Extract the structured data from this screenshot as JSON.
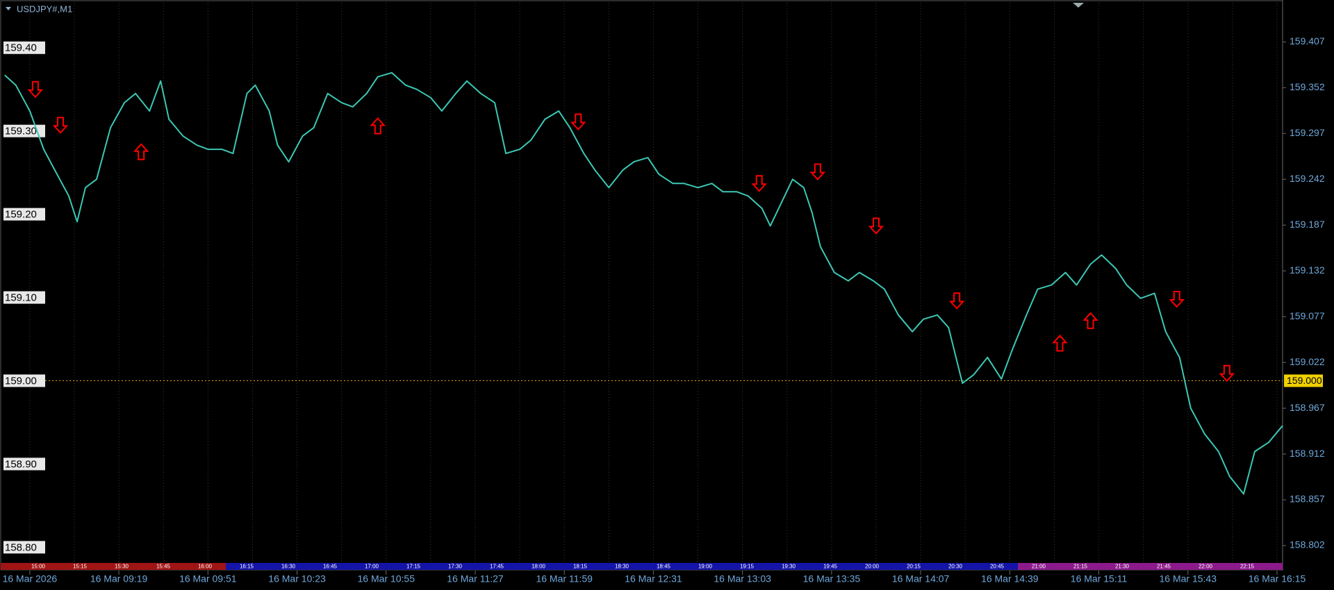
{
  "chart_data": {
    "type": "line",
    "title": "USDJPY#,M1",
    "background": "#000000",
    "grid": true,
    "x": [
      -9,
      -5,
      0,
      5,
      9,
      14,
      17,
      20,
      24,
      29,
      34,
      38,
      43,
      47,
      50,
      55,
      60,
      64,
      69,
      73,
      78,
      81,
      86,
      89,
      93,
      98,
      102,
      107,
      112,
      116,
      121,
      125,
      130,
      135,
      139,
      144,
      148,
      153,
      157,
      162,
      167,
      171,
      176,
      180,
      185,
      190,
      194,
      199,
      203,
      208,
      213,
      217,
      222,
      226,
      231,
      235,
      240,
      245,
      249,
      254,
      258,
      263,
      266,
      269,
      274,
      278,
      281,
      284,
      289,
      294,
      298,
      303,
      307,
      312,
      317,
      321,
      326,
      330,
      335,
      339,
      344,
      349,
      353,
      358,
      362,
      367,
      372,
      376,
      381,
      385,
      390,
      394,
      399,
      404,
      408,
      413,
      417,
      422,
      427,
      431,
      436,
      440,
      445,
      450
    ],
    "series": [
      {
        "color": "#3cc8b4",
        "values": [
          159.367,
          159.355,
          159.324,
          159.278,
          159.253,
          159.222,
          159.191,
          159.232,
          159.242,
          159.304,
          159.334,
          159.345,
          159.324,
          159.36,
          159.314,
          159.294,
          159.283,
          159.278,
          159.278,
          159.273,
          159.345,
          159.355,
          159.324,
          159.283,
          159.263,
          159.294,
          159.304,
          159.345,
          159.334,
          159.329,
          159.345,
          159.365,
          159.37,
          159.355,
          159.35,
          159.34,
          159.324,
          159.345,
          159.36,
          159.345,
          159.334,
          159.273,
          159.278,
          159.289,
          159.314,
          159.324,
          159.304,
          159.273,
          159.253,
          159.232,
          159.253,
          159.263,
          159.268,
          159.248,
          159.237,
          159.237,
          159.232,
          159.237,
          159.227,
          159.227,
          159.222,
          159.207,
          159.186,
          159.207,
          159.242,
          159.232,
          159.202,
          159.161,
          159.13,
          159.12,
          159.13,
          159.12,
          159.11,
          159.079,
          159.059,
          159.074,
          159.079,
          159.064,
          158.997,
          159.007,
          159.028,
          159.002,
          159.038,
          159.079,
          159.11,
          159.115,
          159.13,
          159.115,
          159.14,
          159.151,
          159.135,
          159.115,
          159.099,
          159.105,
          159.059,
          159.028,
          158.967,
          158.936,
          158.915,
          158.885,
          158.864,
          158.915,
          158.926,
          158.946
        ]
      }
    ],
    "arrows_down": {
      "color": "#ff0000",
      "x": [
        2,
        11,
        197,
        262,
        283,
        304,
        333,
        412,
        430
      ],
      "y": [
        159.35,
        159.307,
        159.311,
        159.237,
        159.251,
        159.186,
        159.096,
        159.098,
        159.009
      ]
    },
    "arrows_up": {
      "color": "#ff0000",
      "x": [
        40,
        125,
        370,
        381
      ],
      "y": [
        159.275,
        159.306,
        159.045,
        159.072
      ]
    },
    "xlim": [
      -10.7,
      450
    ],
    "xticks": [
      {
        "value": 0,
        "label": "16 Mar 2026"
      },
      {
        "value": 32,
        "label": "16 Mar 09:19"
      },
      {
        "value": 64,
        "label": "16 Mar 09:51"
      },
      {
        "value": 96,
        "label": "16 Mar 10:23"
      },
      {
        "value": 128,
        "label": "16 Mar 10:55"
      },
      {
        "value": 160,
        "label": "16 Mar 11:27"
      },
      {
        "value": 192,
        "label": "16 Mar 11:59"
      },
      {
        "value": 224,
        "label": "16 Mar 12:31"
      },
      {
        "value": 256,
        "label": "16 Mar 13:03"
      },
      {
        "value": 288,
        "label": "16 Mar 13:35"
      },
      {
        "value": 320,
        "label": "16 Mar 14:07"
      },
      {
        "value": 352,
        "label": "16 Mar 14:39"
      },
      {
        "value": 384,
        "label": "16 Mar 15:11"
      },
      {
        "value": 416,
        "label": "16 Mar 15:43"
      },
      {
        "value": 448,
        "label": "16 Mar 16:15"
      }
    ],
    "ylim": [
      158.782,
      159.454
    ],
    "yticks": [
      159.407,
      159.352,
      159.297,
      159.242,
      159.187,
      159.132,
      159.077,
      159.022,
      158.967,
      158.912,
      158.857,
      158.802
    ],
    "levels": [
      {
        "value": 159.4,
        "label": "159.40"
      },
      {
        "value": 159.3,
        "label": "159.30"
      },
      {
        "value": 159.2,
        "label": "159.20"
      },
      {
        "value": 159.1,
        "label": "159.10"
      },
      {
        "value": 159.0,
        "label": "159.00"
      },
      {
        "value": 158.9,
        "label": "158.90"
      },
      {
        "value": 158.8,
        "label": "158.80"
      }
    ],
    "price_line": {
      "value": 159.0,
      "label": "159.000",
      "color": "#e0a020"
    },
    "session_strip": {
      "labels": [
        "15:00",
        "15:15",
        "15:30",
        "15:45",
        "16:00",
        "16:15",
        "16:30",
        "16:45",
        "17:00",
        "17:15",
        "17:30",
        "17:45",
        "18:00",
        "18:15",
        "18:30",
        "18:45",
        "19:00",
        "19:15",
        "19:30",
        "19:45",
        "20:00",
        "20:15",
        "20:30",
        "20:45",
        "21:00",
        "21:15",
        "21:30",
        "21:45",
        "22:00",
        "22:15"
      ],
      "colors": [
        "#a01414",
        "#a01414",
        "#a01414",
        "#a01414",
        "#a01414",
        "#1414a8",
        "#1414a8",
        "#1414a8",
        "#1414a8",
        "#1414a8",
        "#1414a8",
        "#1414a8",
        "#1414a8",
        "#1414a8",
        "#1414a8",
        "#1414a8",
        "#1414a8",
        "#1414a8",
        "#1414a8",
        "#1414a8",
        "#1414a8",
        "#1414a8",
        "#1414a8",
        "#1414a8",
        "#8c1a8c",
        "#8c1a8c",
        "#8c1a8c",
        "#8c1a8c",
        "#8c1a8c",
        "#8c1a8c"
      ]
    }
  }
}
